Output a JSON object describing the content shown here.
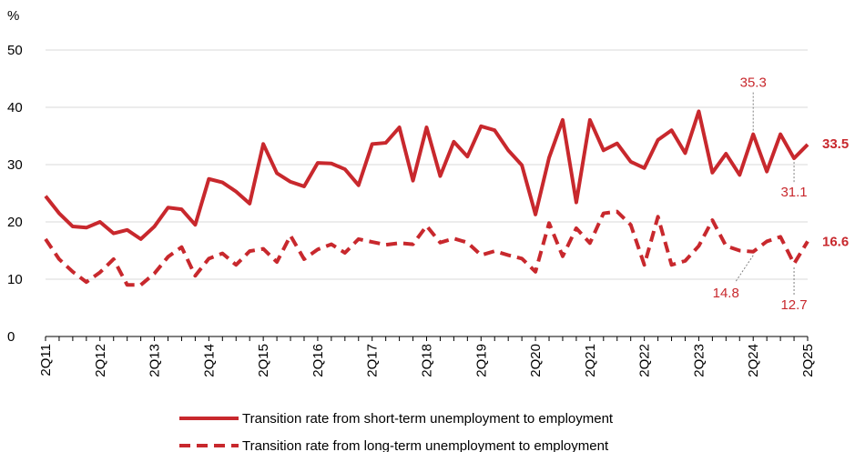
{
  "chart_data": {
    "type": "line",
    "ylabel": "%",
    "ylim": [
      0,
      50
    ],
    "yticks": [
      "0",
      "10",
      "20",
      "30",
      "40",
      "50"
    ],
    "grid": true,
    "legend_position": "bottom",
    "x": [
      "2Q11",
      "3Q11",
      "4Q11",
      "1Q12",
      "2Q12",
      "3Q12",
      "4Q12",
      "1Q13",
      "2Q13",
      "3Q13",
      "4Q13",
      "1Q14",
      "2Q14",
      "3Q14",
      "4Q14",
      "1Q15",
      "2Q15",
      "3Q15",
      "4Q15",
      "1Q16",
      "2Q16",
      "3Q16",
      "4Q16",
      "1Q17",
      "2Q17",
      "3Q17",
      "4Q17",
      "1Q18",
      "2Q18",
      "3Q18",
      "4Q18",
      "1Q19",
      "2Q19",
      "3Q19",
      "4Q19",
      "1Q20",
      "2Q20",
      "3Q20",
      "4Q20",
      "1Q21",
      "2Q21",
      "3Q21",
      "4Q21",
      "1Q22",
      "2Q22",
      "3Q22",
      "4Q22",
      "1Q23",
      "2Q23",
      "3Q23",
      "4Q23",
      "1Q24",
      "2Q24",
      "3Q24",
      "4Q24",
      "1Q25",
      "2Q25"
    ],
    "x_tick_labels": [
      "2Q11",
      "2Q12",
      "2Q13",
      "2Q14",
      "2Q15",
      "2Q16",
      "2Q17",
      "2Q18",
      "2Q19",
      "2Q20",
      "2Q21",
      "2Q22",
      "2Q23",
      "2Q24",
      "2Q25"
    ],
    "color": "#C8282D",
    "series": [
      {
        "name": "Transition rate from short-term unemployment to employment",
        "style": "solid",
        "values": [
          24.5,
          21.5,
          19.2,
          19.0,
          20.0,
          18.0,
          18.6,
          17.0,
          19.2,
          22.5,
          22.2,
          19.5,
          27.5,
          26.9,
          25.3,
          23.2,
          33.6,
          28.5,
          27.0,
          26.2,
          30.3,
          30.2,
          29.2,
          26.4,
          33.6,
          33.8,
          36.5,
          27.2,
          36.5,
          28.0,
          34.0,
          31.4,
          36.7,
          36.0,
          32.5,
          29.9,
          21.3,
          31.2,
          37.8,
          23.4,
          37.8,
          32.5,
          33.7,
          30.5,
          29.4,
          34.3,
          36.0,
          32.0,
          39.3,
          28.6,
          31.9,
          28.2,
          35.3,
          28.8,
          35.3,
          31.1,
          33.5
        ]
      },
      {
        "name": "Transition rate from long-term unemployment to employment",
        "style": "dashed",
        "values": [
          17.0,
          13.5,
          11.3,
          9.5,
          11.2,
          13.5,
          9.0,
          9.0,
          11.0,
          13.9,
          15.6,
          10.6,
          13.6,
          14.5,
          12.5,
          14.9,
          15.3,
          13.0,
          17.6,
          13.5,
          15.2,
          16.1,
          14.6,
          17.0,
          16.5,
          16.0,
          16.3,
          16.1,
          19.3,
          16.4,
          17.1,
          16.4,
          14.2,
          14.9,
          14.2,
          13.6,
          11.3,
          19.8,
          14.0,
          18.9,
          16.3,
          21.5,
          21.8,
          19.5,
          12.5,
          20.9,
          12.5,
          13.2,
          15.8,
          20.3,
          15.8,
          15.0,
          14.8,
          16.6,
          17.4,
          12.7,
          16.6
        ]
      }
    ],
    "annotations": [
      {
        "text": "35.3",
        "x": "2Q24",
        "series": 0
      },
      {
        "text": "31.1",
        "x": "1Q25",
        "series": 0
      },
      {
        "text": "33.5",
        "x": "2Q25",
        "series": 0,
        "bold": true
      },
      {
        "text": "14.8",
        "x": "2Q24",
        "series": 1
      },
      {
        "text": "12.7",
        "x": "1Q25",
        "series": 1
      },
      {
        "text": "16.6",
        "x": "2Q25",
        "series": 1,
        "bold": true
      }
    ]
  }
}
